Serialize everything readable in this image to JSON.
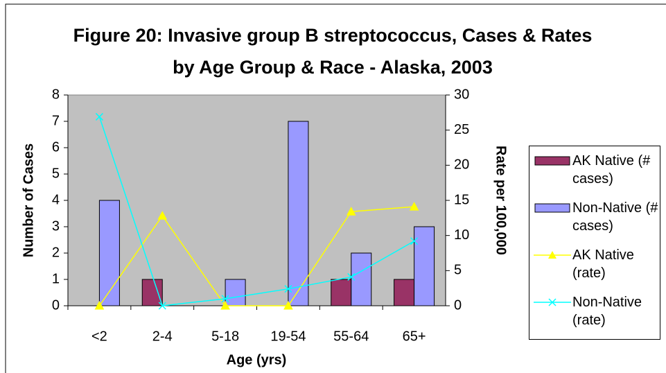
{
  "chart_data": {
    "type": "bar_line",
    "title": "Figure 20: Invasive group B streptococcus, Cases & Rates by Age Group & Race - Alaska, 2003",
    "x_label": "Age (yrs)",
    "y_label": "Number of Cases",
    "y2_label": "Rate per 100,000",
    "categories": [
      "<2",
      "2-4",
      "5-18",
      "19-54",
      "55-64",
      "65+"
    ],
    "ylim": [
      0,
      8
    ],
    "yticks": [
      0,
      1,
      2,
      3,
      4,
      5,
      6,
      7,
      8
    ],
    "y2lim": [
      0,
      30
    ],
    "y2ticks": [
      0,
      5,
      10,
      15,
      20,
      25,
      30
    ],
    "series": [
      {
        "name": "AK Native (# cases)",
        "type": "bar",
        "color": "#993366",
        "values": [
          0,
          1,
          0,
          0,
          1,
          1
        ]
      },
      {
        "name": "Non-Native (# cases)",
        "type": "bar",
        "color": "#9999ff",
        "values": [
          4,
          0,
          1,
          7,
          2,
          3
        ]
      },
      {
        "name": "AK Native (rate)",
        "type": "line",
        "marker": "triangle",
        "axis": "y2",
        "color": "#ffff00",
        "values": [
          0,
          12.8,
          0,
          0,
          13.4,
          14.1
        ]
      },
      {
        "name": "Non-Native (rate)",
        "type": "line",
        "marker": "x",
        "axis": "y2",
        "color": "#00ffff",
        "values": [
          26.9,
          0,
          1.0,
          2.4,
          4.1,
          9.2
        ]
      }
    ]
  }
}
